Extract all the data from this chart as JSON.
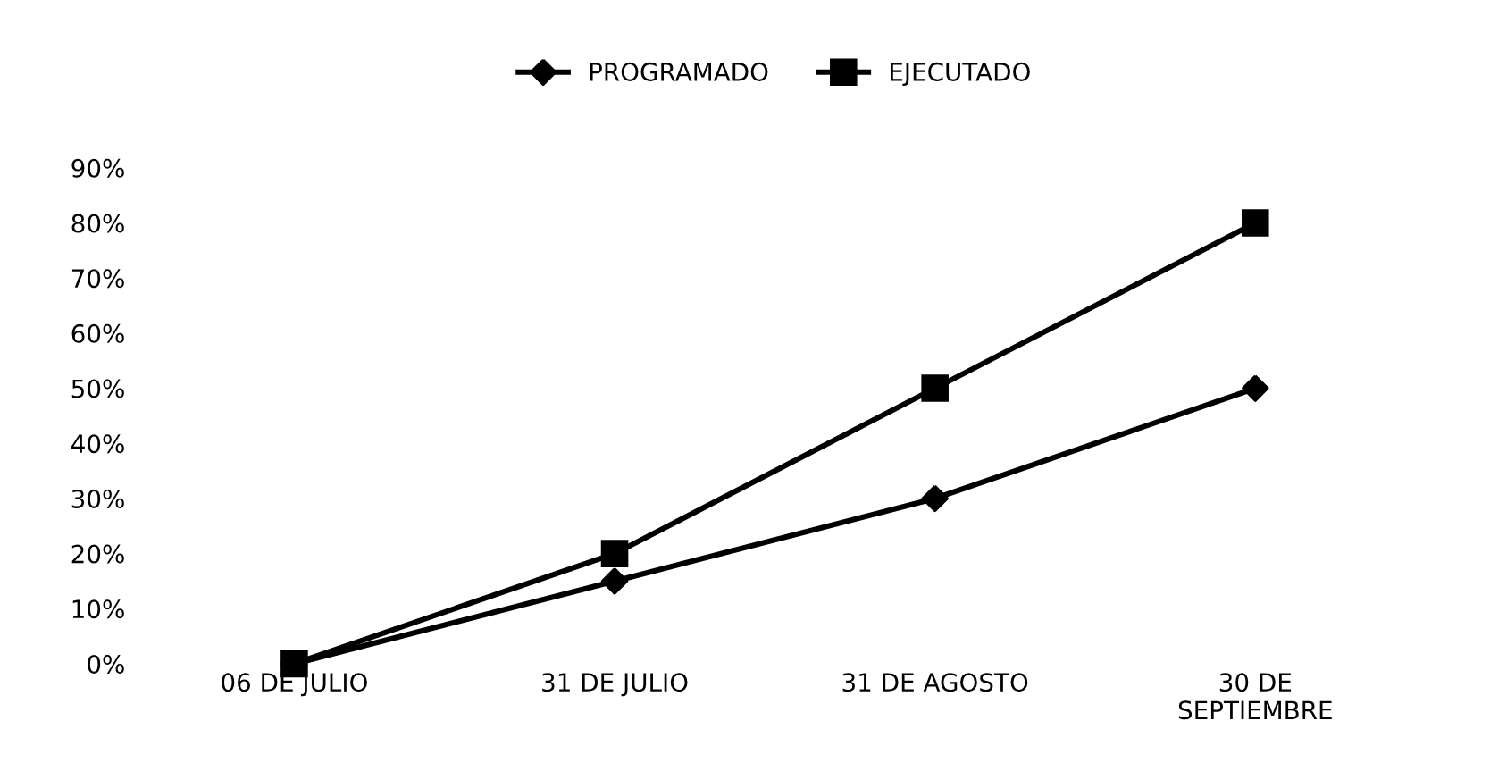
{
  "chart_data": {
    "type": "line",
    "categories": [
      "06 DE JULIO",
      "31 DE JULIO",
      "31 DE AGOSTO",
      "30 DE\nSEPTIEMBRE"
    ],
    "series": [
      {
        "name": "PROGRAMADO",
        "color": "#000000",
        "marker": "diamond",
        "values": [
          0,
          15,
          30,
          50
        ]
      },
      {
        "name": "EJECUTADO",
        "color": "#000000",
        "marker": "square",
        "values": [
          0,
          20,
          50,
          80
        ]
      }
    ],
    "ylim": [
      0,
      90
    ],
    "yticks": [
      {
        "value": 0,
        "label": "0%"
      },
      {
        "value": 10,
        "label": "10%"
      },
      {
        "value": 20,
        "label": "20%"
      },
      {
        "value": 30,
        "label": "30%"
      },
      {
        "value": 40,
        "label": "40%"
      },
      {
        "value": 50,
        "label": "50%"
      },
      {
        "value": 60,
        "label": "60%"
      },
      {
        "value": 70,
        "label": "70%"
      },
      {
        "value": 80,
        "label": "80%"
      },
      {
        "value": 90,
        "label": "90%"
      }
    ],
    "grid": false,
    "legend": "top",
    "line_style": "solid"
  }
}
